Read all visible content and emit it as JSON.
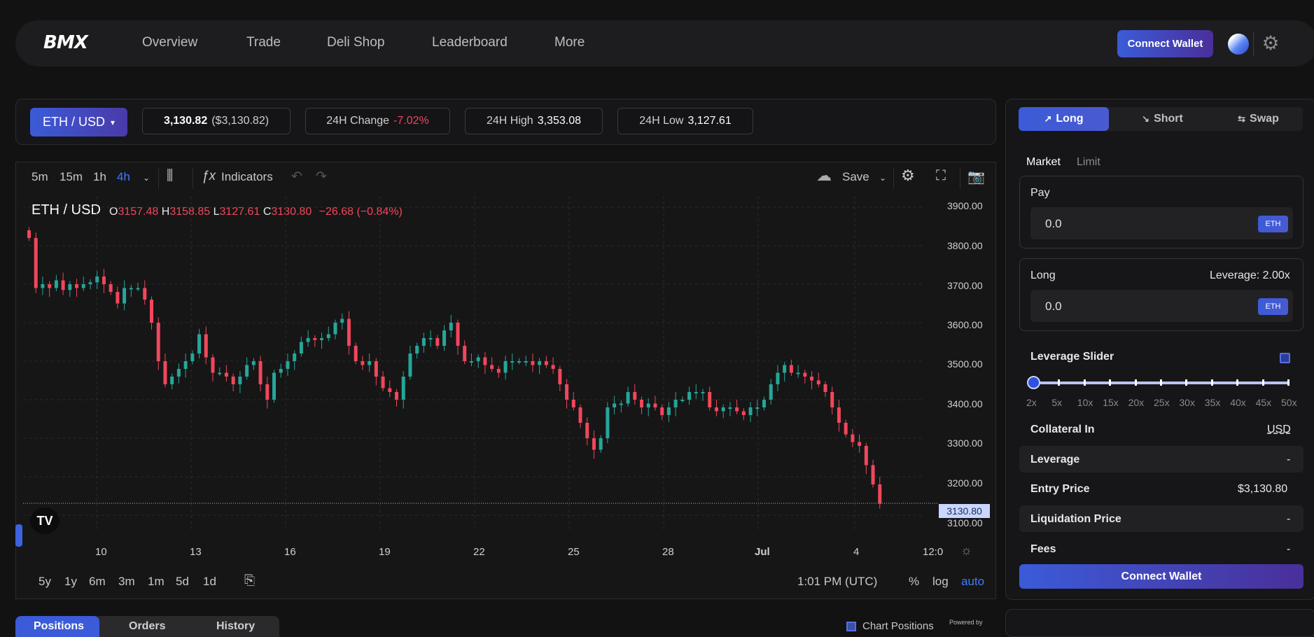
{
  "nav": {
    "logo": "BMX",
    "links": [
      "Overview",
      "Trade",
      "Deli Shop",
      "Leaderboard",
      "More"
    ],
    "connect_label": "Connect Wallet"
  },
  "pair": {
    "selector": "ETH / USD",
    "price": "3,130.82",
    "price_usd": "($3,130.82)",
    "change_label": "24H Change",
    "change_value": "-7.02%",
    "high_label": "24H High",
    "high_value": "3,353.08",
    "low_label": "24H Low",
    "low_value": "3,127.61"
  },
  "chart_toolbar": {
    "intervals": [
      "5m",
      "15m",
      "1h",
      "4h"
    ],
    "active_interval": "4h",
    "indicators_label": "Indicators",
    "save_label": "Save"
  },
  "chart_legend": {
    "symbol": "ETH / USD",
    "o_label": "O",
    "o": "3157.48",
    "h_label": "H",
    "h": "3158.85",
    "l_label": "L",
    "l": "3127.61",
    "c_label": "C",
    "c": "3130.80",
    "change": "−26.68 (−0.84%)"
  },
  "chart_data": {
    "type": "candlestick",
    "title": "ETH / USD",
    "y_ticks": [
      "3900.00",
      "3800.00",
      "3700.00",
      "3600.00",
      "3500.00",
      "3400.00",
      "3300.00",
      "3200.00",
      "3100.00"
    ],
    "ylim": [
      3100,
      3900
    ],
    "x_ticks": [
      "10",
      "13",
      "16",
      "19",
      "22",
      "25",
      "28",
      "Jul",
      "4",
      "12:0"
    ],
    "last_price_label": "3130.80",
    "close_series": [
      3820,
      3690,
      3700,
      3690,
      3710,
      3685,
      3700,
      3690,
      3700,
      3705,
      3720,
      3700,
      3680,
      3650,
      3690,
      3690,
      3690,
      3660,
      3600,
      3500,
      3440,
      3460,
      3480,
      3500,
      3520,
      3570,
      3510,
      3470,
      3470,
      3460,
      3440,
      3460,
      3490,
      3500,
      3440,
      3400,
      3470,
      3480,
      3500,
      3520,
      3550,
      3560,
      3555,
      3560,
      3570,
      3600,
      3610,
      3540,
      3500,
      3490,
      3500,
      3460,
      3430,
      3420,
      3400,
      3460,
      3520,
      3540,
      3560,
      3560,
      3540,
      3580,
      3600,
      3540,
      3500,
      3500,
      3510,
      3490,
      3480,
      3470,
      3500,
      3500,
      3500,
      3500,
      3490,
      3500,
      3490,
      3480,
      3440,
      3400,
      3380,
      3340,
      3300,
      3270,
      3300,
      3380,
      3390,
      3390,
      3420,
      3400,
      3380,
      3390,
      3380,
      3360,
      3380,
      3400,
      3400,
      3420,
      3420,
      3420,
      3380,
      3370,
      3380,
      3380,
      3370,
      3360,
      3380,
      3380,
      3400,
      3440,
      3470,
      3490,
      3470,
      3470,
      3460,
      3450,
      3440,
      3420,
      3380,
      3340,
      3310,
      3290,
      3280,
      3230,
      3180,
      3130
    ]
  },
  "chart_bottom": {
    "ranges": [
      "5y",
      "1y",
      "6m",
      "3m",
      "1m",
      "5d",
      "1d"
    ],
    "time": "1:01 PM (UTC)",
    "pct": "%",
    "log": "log",
    "auto": "auto"
  },
  "bottom_tabs": [
    "Positions",
    "Orders",
    "History"
  ],
  "chart_positions_label": "Chart Positions",
  "powered_by": "Powered by",
  "side": {
    "tabs": [
      "Long",
      "Short",
      "Swap"
    ],
    "mode_tabs": [
      "Market",
      "Limit"
    ],
    "pay_label": "Pay",
    "pay_value": "0.0",
    "pay_token": "ETH",
    "long_label": "Long",
    "leverage_label": "Leverage: 2.00x",
    "long_value": "0.0",
    "long_token": "ETH",
    "slider_label": "Leverage Slider",
    "slider_value": 2,
    "slider_marks": [
      "2x",
      "5x",
      "10x",
      "15x",
      "20x",
      "25x",
      "30x",
      "35x",
      "40x",
      "45x",
      "50x"
    ],
    "collateral_label": "Collateral In",
    "collateral_value": "USD",
    "leverage_row_label": "Leverage",
    "leverage_row_value": "-",
    "entry_label": "Entry Price",
    "entry_value": "$3,130.80",
    "liq_label": "Liquidation Price",
    "liq_value": "-",
    "fees_label": "Fees",
    "fees_value": "-",
    "connect_label": "Connect Wallet"
  },
  "colors": {
    "accent": "#3b5bd8",
    "up": "#26a69a",
    "down": "#f0475c"
  }
}
